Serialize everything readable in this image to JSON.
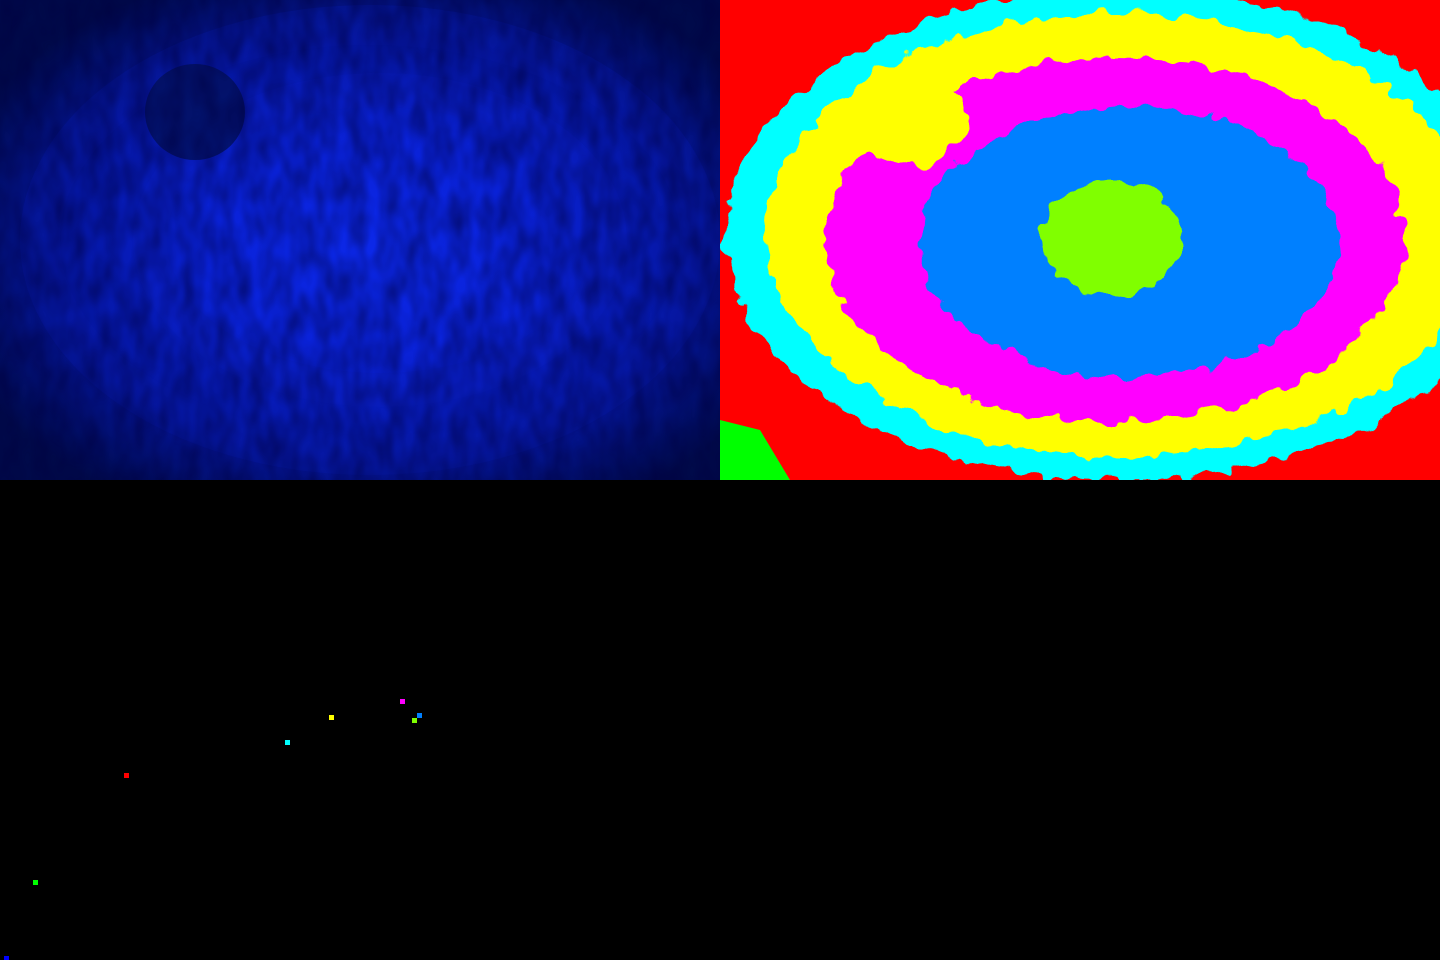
{
  "panels": [
    {
      "id": "original",
      "kind": "source-image",
      "description_colors": {
        "outer": "#000a4a",
        "mid": "#0516a0",
        "inner": "#0a22d8",
        "center": "#0c28e8",
        "blob": "#02105a"
      }
    },
    {
      "id": "segmented",
      "kind": "cluster-segmentation",
      "regions": [
        {
          "cluster": "red",
          "color": "#ff0000"
        },
        {
          "cluster": "cyan",
          "color": "#00ffff"
        },
        {
          "cluster": "yellow",
          "color": "#ffff00"
        },
        {
          "cluster": "magenta",
          "color": "#ff00ff"
        },
        {
          "cluster": "blue",
          "color": "#0080ff"
        },
        {
          "cluster": "lime",
          "color": "#80ff00"
        },
        {
          "cluster": "green",
          "color": "#00ff00"
        },
        {
          "cluster": "black",
          "color": "#000000"
        }
      ]
    },
    {
      "id": "centroids",
      "kind": "cluster-centers",
      "points": [
        {
          "color": "#00ff00"
        },
        {
          "color": "#ff0000"
        },
        {
          "color": "#00ffff"
        },
        {
          "color": "#ffff00"
        },
        {
          "color": "#ff00ff"
        },
        {
          "color": "#0080ff"
        },
        {
          "color": "#80ff00"
        },
        {
          "color": "#0000ff"
        }
      ]
    },
    {
      "id": "empty",
      "kind": "blank",
      "color": "#000000"
    }
  ]
}
